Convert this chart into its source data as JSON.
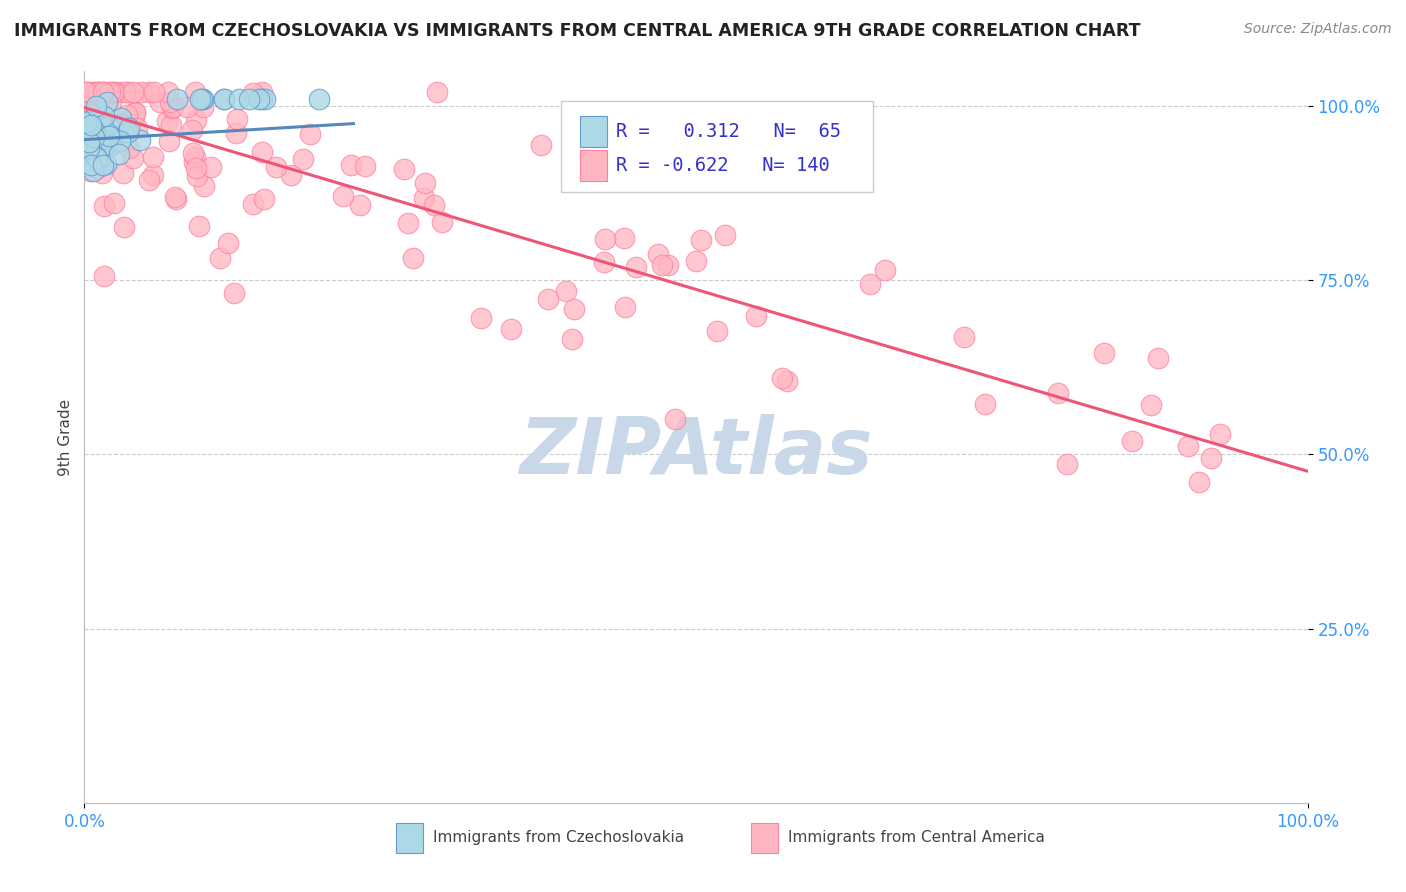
{
  "title": "IMMIGRANTS FROM CZECHOSLOVAKIA VS IMMIGRANTS FROM CENTRAL AMERICA 9TH GRADE CORRELATION CHART",
  "source": "Source: ZipAtlas.com",
  "ylabel": "9th Grade",
  "xlim": [
    0.0,
    1.0
  ],
  "ylim": [
    0.0,
    1.05
  ],
  "y_tick_positions": [
    0.25,
    0.5,
    0.75,
    1.0
  ],
  "y_tick_labels": [
    "25.0%",
    "50.0%",
    "75.0%",
    "100.0%"
  ],
  "blue_R": 0.312,
  "blue_N": 65,
  "pink_R": -0.622,
  "pink_N": 140,
  "blue_color": "#ADD8E6",
  "pink_color": "#FFB6C1",
  "blue_edge_color": "#6699CC",
  "pink_edge_color": "#FF80A0",
  "blue_line_color": "#5588BB",
  "pink_line_color": "#EE5577",
  "background_color": "#FFFFFF",
  "grid_color": "#CCCCCC",
  "title_color": "#222222",
  "legend_text_color": "#3333CC",
  "watermark_color": "#C8D8E8",
  "pink_line_x0": 0.0,
  "pink_line_y0": 0.998,
  "pink_line_x1": 1.0,
  "pink_line_y1": 0.476,
  "blue_line_x0": 0.0,
  "blue_line_y0": 0.952,
  "blue_line_x1": 0.22,
  "blue_line_y1": 0.975
}
